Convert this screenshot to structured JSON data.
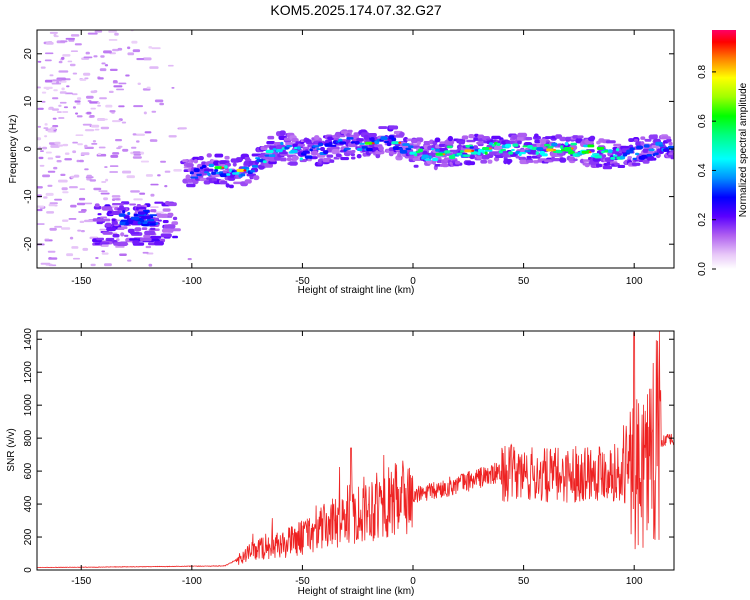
{
  "title": "KOM5.2025.174.07.32.G27",
  "chart_data": [
    {
      "type": "heatmap",
      "xlabel": "Height of straight line (km)",
      "ylabel": "Frequency (Hz)",
      "xlim": [
        -170,
        118
      ],
      "ylim": [
        -25,
        25
      ],
      "xticks": [
        -150,
        -100,
        -50,
        0,
        50,
        100
      ],
      "yticks": [
        -20,
        -10,
        0,
        10,
        20
      ],
      "colorbar": {
        "label": "Normalized spectral amplitude",
        "range": [
          0,
          0.97
        ],
        "ticks": [
          0.0,
          0.2,
          0.4,
          0.6,
          0.8
        ]
      },
      "ridge": {
        "x": [
          -100,
          -90,
          -80,
          -70,
          -60,
          -50,
          -40,
          -30,
          -20,
          -10,
          0,
          10,
          20,
          30,
          40,
          50,
          60,
          70,
          80,
          90,
          100,
          110,
          118
        ],
        "y": [
          -5,
          -4,
          -5,
          -3,
          1,
          -1,
          0,
          1,
          1,
          2,
          -1,
          -1,
          -0.5,
          0,
          0,
          0,
          0,
          0,
          -0.5,
          -1,
          -1,
          0,
          0
        ]
      },
      "cluster_low": {
        "x": [
          -135,
          -115
        ],
        "y": [
          -17,
          -13
        ]
      }
    },
    {
      "type": "line",
      "xlabel": "Height of straight line (km)",
      "ylabel": "SNR (v/v)",
      "xlim": [
        -170,
        118
      ],
      "ylim": [
        0,
        1450
      ],
      "xticks": [
        -150,
        -100,
        -50,
        0,
        50,
        100
      ],
      "yticks": [
        0,
        200,
        400,
        600,
        800,
        1000,
        1200,
        1400
      ],
      "color": "#ee2222",
      "envelope": {
        "x": [
          -170,
          -120,
          -85,
          -80,
          -70,
          -60,
          -50,
          -40,
          -30,
          -20,
          -10,
          0,
          10,
          20,
          30,
          40,
          50,
          60,
          70,
          80,
          90,
          100,
          110,
          118
        ],
        "y": [
          15,
          20,
          25,
          60,
          130,
          150,
          200,
          260,
          330,
          380,
          410,
          450,
          480,
          520,
          560,
          590,
          580,
          570,
          580,
          600,
          600,
          550,
          780,
          790
        ]
      }
    }
  ]
}
